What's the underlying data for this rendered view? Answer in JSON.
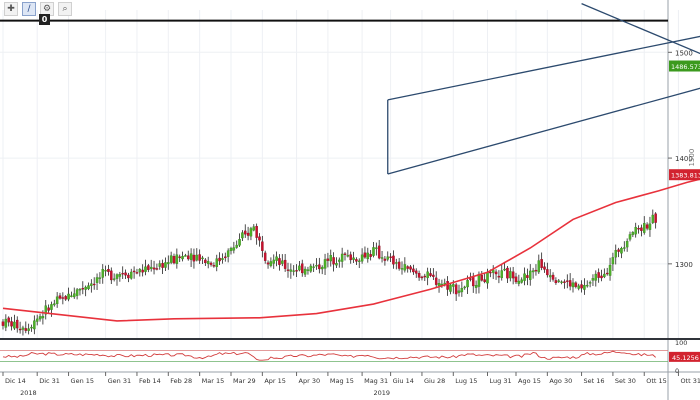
{
  "toolbar": {
    "tools": [
      {
        "icon": "crosshair-icon",
        "glyph": "✚",
        "active": false
      },
      {
        "icon": "draw-pencil-icon",
        "glyph": "∕",
        "active": true
      },
      {
        "icon": "settings-gear-icon",
        "glyph": "⚙",
        "active": false
      },
      {
        "icon": "zoom-magnifier-icon",
        "glyph": "⌕",
        "active": false
      }
    ],
    "badge": "0"
  },
  "colors": {
    "up": "#4caf28",
    "down": "#c8102e",
    "wick": "#222222",
    "ma": "#e8323c",
    "channel": "#2c4a6e",
    "resistance": "#111111",
    "rsi": "#d23c3c",
    "rsi_fill": "#f3c0c0",
    "price_tag": "#3c9a1e",
    "ma_tag": "#d2232f",
    "rsi_tag": "#d2232f"
  },
  "chart_data": {
    "type": "candlestick",
    "y_ticks": [
      1300,
      1400,
      1500
    ],
    "ylim": [
      1228,
      1540
    ],
    "price_label": "1486.5736",
    "ma_label": "1383.8137",
    "side_tag": "1500",
    "resistance_level": 1530,
    "series": [
      {
        "name": "",
        "kind": "candles",
        "count": 230,
        "anchors": [
          [
            0,
            1245
          ],
          [
            8,
            1240
          ],
          [
            18,
            1262
          ],
          [
            26,
            1275
          ],
          [
            36,
            1290
          ],
          [
            48,
            1293
          ],
          [
            56,
            1300
          ],
          [
            66,
            1310
          ],
          [
            74,
            1300
          ],
          [
            82,
            1318
          ],
          [
            88,
            1335
          ],
          [
            92,
            1308
          ],
          [
            100,
            1295
          ],
          [
            110,
            1297
          ],
          [
            118,
            1308
          ],
          [
            124,
            1305
          ],
          [
            130,
            1312
          ],
          [
            140,
            1296
          ],
          [
            146,
            1290
          ],
          [
            154,
            1282
          ],
          [
            160,
            1276
          ],
          [
            166,
            1285
          ],
          [
            176,
            1290
          ],
          [
            184,
            1287
          ],
          [
            188,
            1300
          ],
          [
            196,
            1284
          ],
          [
            203,
            1276
          ],
          [
            212,
            1296
          ],
          [
            220,
            1330
          ],
          [
            230,
            1343
          ],
          [
            238,
            1363
          ],
          [
            244,
            1388
          ],
          [
            252,
            1410
          ],
          [
            262,
            1452
          ],
          [
            266,
            1487
          ],
          [
            272,
            1497
          ],
          [
            278,
            1478
          ],
          [
            282,
            1490
          ],
          [
            286,
            1486
          ],
          [
            290,
            1478
          ],
          [
            296,
            1488
          ],
          [
            302,
            1485
          ],
          [
            308,
            1490
          ],
          [
            314,
            1480
          ],
          [
            320,
            1484
          ],
          [
            328,
            1482
          ],
          [
            336,
            1490
          ],
          [
            343,
            1486
          ]
        ],
        "visible_from": 0,
        "visible_to": 230
      },
      {
        "name": "",
        "kind": "moving-average",
        "points": [
          [
            0,
            1258
          ],
          [
            40,
            1246
          ],
          [
            60,
            1248
          ],
          [
            90,
            1249
          ],
          [
            110,
            1253
          ],
          [
            130,
            1262
          ],
          [
            150,
            1276
          ],
          [
            170,
            1292
          ],
          [
            185,
            1315
          ],
          [
            200,
            1342
          ],
          [
            215,
            1358
          ],
          [
            230,
            1369
          ],
          [
            240,
            1377
          ],
          [
            250,
            1383.8
          ]
        ]
      },
      {
        "name": "",
        "kind": "channel-lower",
        "points": [
          [
            135,
            1385
          ],
          [
            250,
            1470
          ]
        ]
      },
      {
        "name": "",
        "kind": "channel-upper",
        "points": [
          [
            135,
            1455
          ],
          [
            250,
            1518
          ]
        ]
      },
      {
        "name": "",
        "kind": "trendline-down",
        "points": [
          [
            203,
            1546
          ],
          [
            248,
            1495
          ]
        ]
      }
    ],
    "x_ticks": [
      {
        "i": 0,
        "label": "Dic 14"
      },
      {
        "i": 12,
        "label": "Dic 31"
      },
      {
        "i": 23,
        "label": "Gen 15"
      },
      {
        "i": 36,
        "label": "Gen 31"
      },
      {
        "i": 47,
        "label": "Feb 14"
      },
      {
        "i": 58,
        "label": "Feb 28"
      },
      {
        "i": 69,
        "label": "Mar 15"
      },
      {
        "i": 80,
        "label": "Mar 29"
      },
      {
        "i": 91,
        "label": "Apr 15"
      },
      {
        "i": 103,
        "label": "Apr 30"
      },
      {
        "i": 114,
        "label": "Mag 15"
      },
      {
        "i": 126,
        "label": "Mag 31"
      },
      {
        "i": 136,
        "label": "Giu 14"
      },
      {
        "i": 147,
        "label": "Giu 28"
      },
      {
        "i": 158,
        "label": "Lug 15"
      },
      {
        "i": 170,
        "label": "Lug 31"
      },
      {
        "i": 180,
        "label": "Ago 15"
      },
      {
        "i": 191,
        "label": "Ago 30"
      },
      {
        "i": 203,
        "label": "Set 16"
      },
      {
        "i": 214,
        "label": "Set 30"
      },
      {
        "i": 225,
        "label": "Ott 15"
      },
      {
        "i": 237,
        "label": "Ott 31"
      }
    ],
    "year_labels": [
      {
        "i": 6,
        "label": "2018"
      },
      {
        "i": 130,
        "label": "2019"
      }
    ],
    "rsi": {
      "ylim": [
        0,
        100
      ],
      "ticks": [
        100,
        0
      ],
      "current_label": "45.1256",
      "levels": [
        70,
        30
      ]
    }
  }
}
